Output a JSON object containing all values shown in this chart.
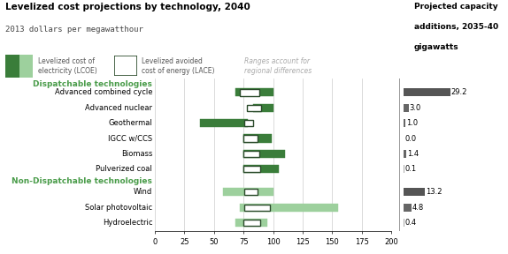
{
  "title": "Levelized cost projections by technology, 2040",
  "subtitle": "2013 dollars per megawatthour",
  "categories": [
    "Advanced combined cycle",
    "Advanced nuclear",
    "Geothermal",
    "IGCC w/CCS",
    "Biomass",
    "Pulverized coal",
    "Wind",
    "Solar photovoltaic",
    "Hydroelectric"
  ],
  "is_dispatchable": [
    true,
    true,
    true,
    true,
    true,
    true,
    false,
    false,
    false
  ],
  "lcoe_ranges": [
    [
      68,
      100
    ],
    [
      83,
      100
    ],
    [
      38,
      79
    ],
    [
      75,
      99
    ],
    [
      75,
      110
    ],
    [
      75,
      105
    ],
    [
      58,
      100
    ],
    [
      72,
      155
    ],
    [
      68,
      95
    ]
  ],
  "lace_ranges": [
    [
      72,
      88
    ],
    [
      78,
      90
    ],
    [
      76,
      83
    ],
    [
      75,
      87
    ],
    [
      75,
      88
    ],
    [
      75,
      89
    ],
    [
      76,
      87
    ],
    [
      76,
      97
    ],
    [
      75,
      89
    ]
  ],
  "capacity": [
    29.2,
    3.0,
    1.0,
    0.0,
    1.4,
    0.1,
    13.2,
    4.8,
    0.4
  ],
  "capacity_bar_colors": [
    "#555555",
    "#666666",
    "#666666",
    "#aaaaaa",
    "#666666",
    "#aaaaaa",
    "#555555",
    "#666666",
    "#aaaaaa"
  ],
  "y_positions": [
    8.5,
    7.5,
    6.5,
    5.5,
    4.5,
    3.5,
    2.0,
    1.0,
    0.0
  ],
  "disp_section_y": 9.05,
  "non_disp_section_y": 2.72,
  "xlim": [
    0,
    200
  ],
  "xticks": [
    0,
    25,
    50,
    75,
    100,
    125,
    150,
    175,
    200
  ],
  "ylim": [
    -0.55,
    9.4
  ],
  "disp_lcoe_color": "#3a7d3a",
  "non_disp_lcoe_color": "#9dd09d",
  "lace_edge_color": "#2a4a2a",
  "section_color": "#4a9c4a",
  "grid_color": "#cccccc",
  "legend_lcoe_dark": "#3a7d3a",
  "legend_lcoe_light": "#9dd09d"
}
